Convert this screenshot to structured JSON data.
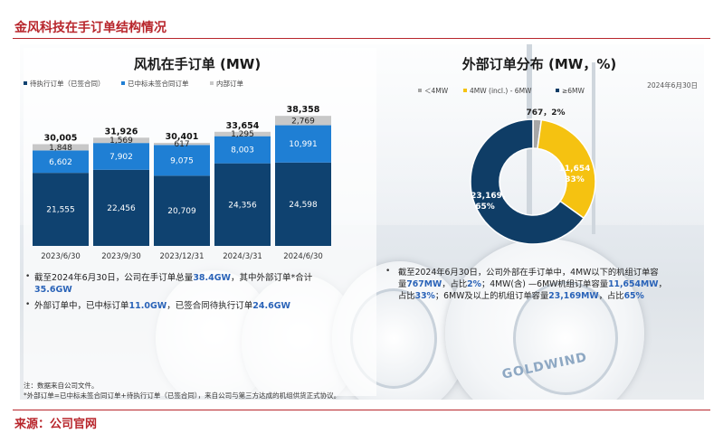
{
  "page_title": "金风科技在手订单结构情况",
  "source": "来源：公司官网",
  "chart_data": [
    {
      "type": "bar",
      "stacked": true,
      "title": "风机在手订单 (MW)",
      "categories": [
        "2023/6/30",
        "2023/9/30",
        "2023/12/31",
        "2024/3/31",
        "2024/6/30"
      ],
      "series": [
        {
          "name": "待执行订单（已签合同）",
          "color": "#0f4270",
          "values": [
            21555,
            22456,
            20709,
            24356,
            24598
          ]
        },
        {
          "name": "已中标未签合同订单",
          "color": "#1f7fd4",
          "values": [
            6602,
            7902,
            9075,
            8003,
            10991
          ]
        },
        {
          "name": "内部订单",
          "color": "#c8c8c8",
          "values": [
            1848,
            1569,
            617,
            1295,
            2769
          ]
        }
      ],
      "totals": [
        "30,005",
        "31,926",
        "30,401",
        "33,654",
        "38,358"
      ],
      "value_labels": [
        [
          "21,555",
          "22,456",
          "20,709",
          "24,356",
          "24,598"
        ],
        [
          "6,602",
          "7,902",
          "9,075",
          "8,003",
          "10,991"
        ],
        [
          "1,848",
          "1,569",
          "617",
          "1,295",
          "2,769"
        ]
      ],
      "ylim": [
        0,
        40000
      ]
    },
    {
      "type": "pie",
      "donut": true,
      "title": "外部订单分布 (MW，%)",
      "date_note": "2024年6月30日",
      "slices": [
        {
          "name": "＜4MW",
          "value": 767,
          "pct": 2,
          "color": "#a6a6a6",
          "label": "767，2%"
        },
        {
          "name": "4MW (incl.) - 6MW",
          "value": 11654,
          "pct": 33,
          "color": "#f5c211",
          "label1": "11,654",
          "label2": "33%"
        },
        {
          "name": "≥6MW",
          "value": 23169,
          "pct": 65,
          "color": "#0f3d66",
          "label1": "23,169，",
          "label2": "65%"
        }
      ]
    }
  ],
  "left_bullets": [
    {
      "pre": "截至2024年6月30日，公司在手订单总量",
      "hl1": "38.4GW",
      "mid": "，其中外部订单*合计",
      "hl2": "35.6GW"
    },
    {
      "pre": "外部订单中，已中标订单",
      "hl1": "11.0GW",
      "mid": "，已签合同待执行订单",
      "hl2": "24.6GW"
    }
  ],
  "right_bullet": {
    "line1": "截至2024年6月30日，公司外部在手订单中，4MW以下的机组订单容",
    "line2_pre": "量",
    "line2_hl1": "767MW",
    "line2_mid": "，占比",
    "line2_hl2": "2%",
    "line2_mid2": "；4MW(含) —6MW机组订单容量",
    "line2_hl3": "11,654MW",
    "line3_pre": "，",
    "line3_mid0": "占比",
    "line3_hl1": "33%",
    "line3_mid": "；6MW及以上的机组订单容量",
    "line3_hl2": "23,169MW",
    "line3_end": "，占比",
    "line3_hl3": "65%"
  },
  "notes": {
    "n1": "注：数据来自公司文件。",
    "n2": "*外部订单=已中标未签合同订单+待执行订单（已签合同），来自公司与第三方达成的机组供货正式协议。"
  },
  "brand_mark": "GOLDWIND",
  "colors": {
    "accent_red": "#b8262c",
    "highlight_blue": "#2a63b8"
  }
}
